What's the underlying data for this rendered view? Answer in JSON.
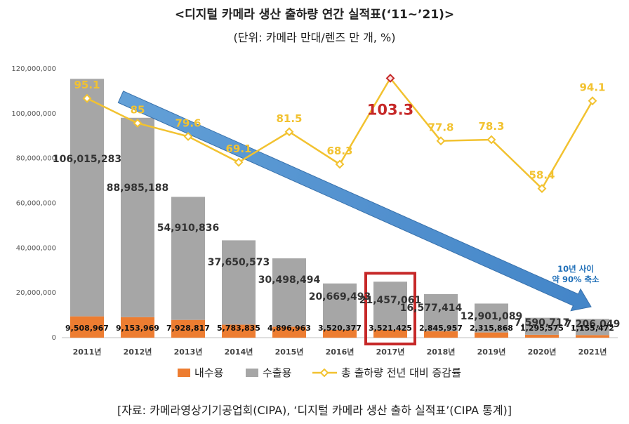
{
  "header": {
    "title": "<디지털 카메라 생산 출하량 연간 실적표(‘11~’21)>",
    "subtitle": "(단위: 카메라 만대/렌즈 만 개, %)"
  },
  "footer": {
    "source": "[자료: 카메라영상기기공업회(CIPA), ‘디지털 카메라 생산 출하 실적표’(CIPA 통계)]"
  },
  "colors": {
    "export": "#a6a6a6",
    "domestic": "#ed7d31",
    "rate": "#f2c230",
    "highlight": "#c62828",
    "arrow": "#4a90d9"
  },
  "chart_data": {
    "type": "bar",
    "stacked": true,
    "categories": [
      "2011년",
      "2012년",
      "2013년",
      "2014년",
      "2015년",
      "2016년",
      "2017년",
      "2018년",
      "2019년",
      "2020년",
      "2021년"
    ],
    "series": [
      {
        "name": "내수용",
        "values": [
          9508967,
          9153969,
          7928817,
          5783835,
          4896963,
          3520377,
          3521425,
          2845957,
          2315868,
          1295575,
          1155472
        ],
        "labels": [
          "9,508,967",
          "9,153,969",
          "7,928,817",
          "5,783,835",
          "4,896,963",
          "3,520,377",
          "3,521,425",
          "2,845,957",
          "2,315,868",
          "1,295,575",
          "1,155,472"
        ]
      },
      {
        "name": "수출용",
        "values": [
          106015283,
          88985188,
          54910836,
          37650573,
          30498494,
          20669493,
          21457061,
          16577414,
          12901089,
          7590717,
          7206049
        ],
        "labels": [
          "106,015,283",
          "88,985,188",
          "54,910,836",
          "37,650,573",
          "30,498,494",
          "20,669,493",
          "21,457,061",
          "16,577,414",
          "12,901,089",
          "7,590,717",
          "7,206,049"
        ]
      }
    ],
    "line": {
      "name": "총 출하량 전년 대비 증감률",
      "values": [
        95.1,
        85,
        79.6,
        69.1,
        81.5,
        68.3,
        103.3,
        77.8,
        78.3,
        58.4,
        94.1
      ],
      "labels": [
        "95.1",
        "85",
        "79.6",
        "69.1",
        "81.5",
        "68.3",
        "103.3",
        "77.8",
        "78.3",
        "58.4",
        "94.1"
      ],
      "highlight_index": 6
    },
    "y_axis": {
      "min": 0,
      "max": 120000000,
      "step": 20000000,
      "tick_labels": [
        "0",
        "20,000,000",
        "40,000,000",
        "60,000,000",
        "80,000,000",
        "100,000,000",
        "120,000,000"
      ]
    },
    "annotation": [
      "10년 사이",
      "약 90% 축소"
    ],
    "legend_position": "bottom"
  }
}
